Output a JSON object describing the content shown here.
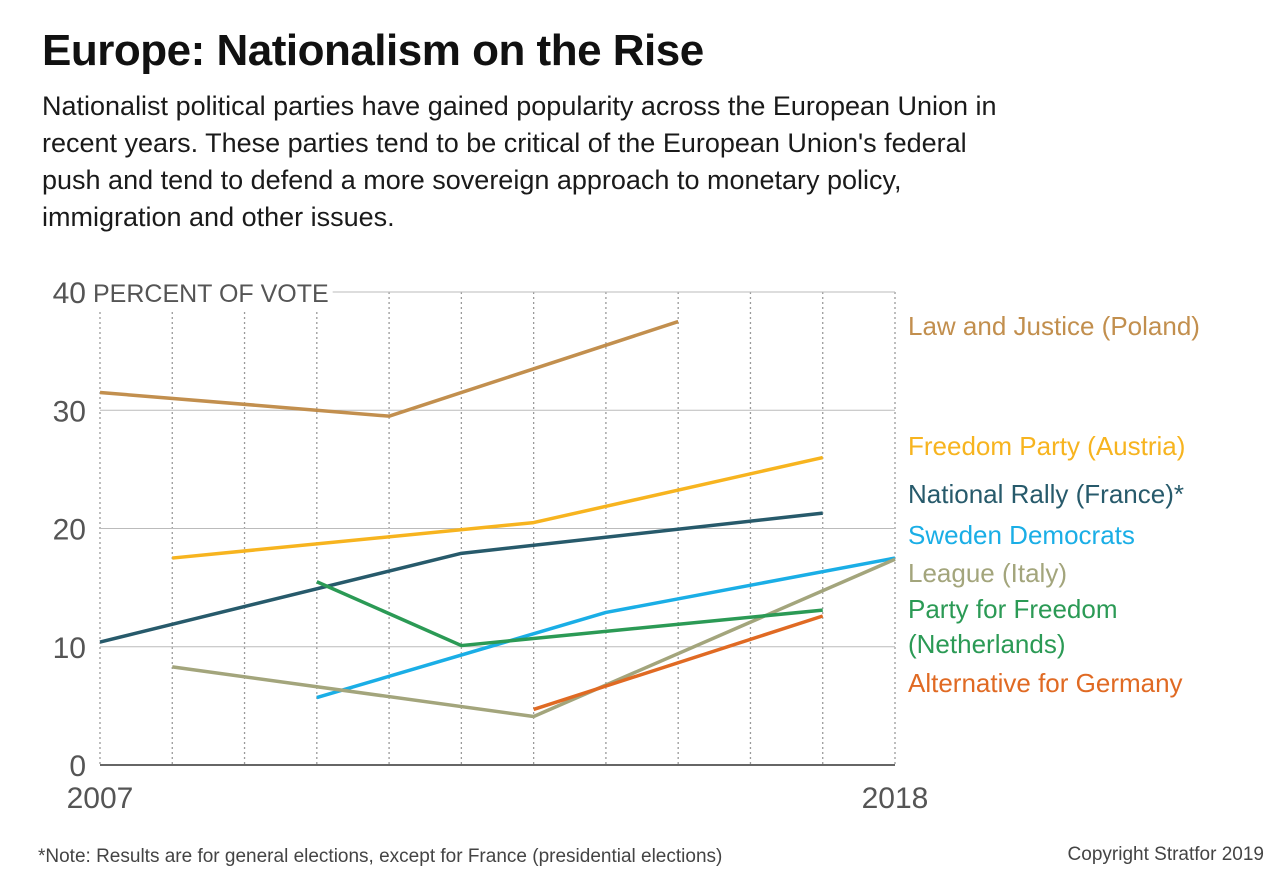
{
  "header": {
    "title": "Europe: Nationalism on the Rise",
    "subtitle": "Nationalist political parties have gained popularity across the European Union in recent years. These parties tend to be critical of the European Union's federal push and tend to defend a more sovereign approach to monetary policy, immigration and other issues."
  },
  "footer": {
    "note": "*Note: Results are for general elections, except for France (presidential elections)",
    "copyright": "Copyright Stratfor 2019"
  },
  "chart_data": {
    "type": "line",
    "title": "Europe: Nationalism on the Rise",
    "ylabel": "PERCENT OF VOTE",
    "xlabel": "",
    "xlim": [
      2007,
      2018
    ],
    "ylim": [
      0,
      40
    ],
    "yticks": [
      0,
      10,
      20,
      30,
      40
    ],
    "xtick_labels": [
      "2007",
      "2018"
    ],
    "grid": {
      "horizontal": true,
      "vertical_dotted": true
    },
    "legend": "right",
    "series": [
      {
        "name": "Law and Justice (Poland)",
        "color": "#c28f4e",
        "points": [
          [
            2007,
            31.5
          ],
          [
            2011,
            29.5
          ],
          [
            2015,
            37.5
          ]
        ]
      },
      {
        "name": "Freedom Party (Austria)",
        "color": "#f7b41f",
        "points": [
          [
            2008,
            17.5
          ],
          [
            2013,
            20.5
          ],
          [
            2017,
            26.0
          ]
        ]
      },
      {
        "name": "National Rally (France)*",
        "color": "#275a6b",
        "points": [
          [
            2007,
            10.4
          ],
          [
            2012,
            17.9
          ],
          [
            2017,
            21.3
          ]
        ]
      },
      {
        "name": "Sweden Democrats",
        "color": "#1aaee6",
        "points": [
          [
            2010,
            5.7
          ],
          [
            2014,
            12.9
          ],
          [
            2018,
            17.5
          ]
        ]
      },
      {
        "name": "League (Italy)",
        "color": "#a3a57c",
        "points": [
          [
            2008,
            8.3
          ],
          [
            2013,
            4.1
          ],
          [
            2018,
            17.4
          ]
        ]
      },
      {
        "name": "Party for Freedom (Netherlands)",
        "color": "#2b9a55",
        "points": [
          [
            2010,
            15.5
          ],
          [
            2012,
            10.1
          ],
          [
            2017,
            13.1
          ]
        ]
      },
      {
        "name": "Alternative for Germany",
        "color": "#e06a23",
        "points": [
          [
            2013,
            4.7
          ],
          [
            2017,
            12.6
          ]
        ]
      }
    ]
  }
}
